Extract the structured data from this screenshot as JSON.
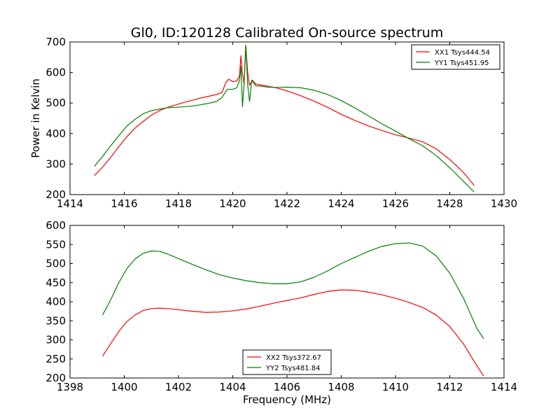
{
  "figure": {
    "title": "Gl0, ID:120128 Calibrated On-source spectrum"
  },
  "chart_data": [
    {
      "type": "line",
      "title": "Gl0, ID:120128 Calibrated On-source spectrum",
      "xlabel": "",
      "ylabel": "Power in Kelvin",
      "xlim": [
        1414,
        1430
      ],
      "ylim": [
        200,
        700
      ],
      "xticks": [
        "1414",
        "1416",
        "1418",
        "1420",
        "1422",
        "1424",
        "1426",
        "1428",
        "1430"
      ],
      "yticks": [
        "200",
        "300",
        "400",
        "500",
        "600",
        "700"
      ],
      "grid": false,
      "legend_position": "top-right",
      "series": [
        {
          "name": "XX1 Tsys444.54",
          "color": "#ff0000",
          "points": [
            [
              1414.9,
              262
            ],
            [
              1415.2,
              290
            ],
            [
              1415.5,
              322
            ],
            [
              1415.8,
              357
            ],
            [
              1416.1,
              390
            ],
            [
              1416.4,
              418
            ],
            [
              1416.7,
              440
            ],
            [
              1417.0,
              460
            ],
            [
              1417.3,
              475
            ],
            [
              1417.6,
              486
            ],
            [
              1417.9,
              494
            ],
            [
              1418.2,
              502
            ],
            [
              1418.5,
              509
            ],
            [
              1418.8,
              516
            ],
            [
              1419.1,
              522
            ],
            [
              1419.4,
              528
            ],
            [
              1419.6,
              534
            ],
            [
              1419.75,
              568
            ],
            [
              1419.85,
              578
            ],
            [
              1420.0,
              570
            ],
            [
              1420.15,
              572
            ],
            [
              1420.25,
              590
            ],
            [
              1420.3,
              655
            ],
            [
              1420.35,
              600
            ],
            [
              1420.42,
              562
            ],
            [
              1420.48,
              690
            ],
            [
              1420.55,
              600
            ],
            [
              1420.62,
              558
            ],
            [
              1420.72,
              575
            ],
            [
              1420.85,
              562
            ],
            [
              1421.0,
              560
            ],
            [
              1421.3,
              555
            ],
            [
              1421.6,
              550
            ],
            [
              1422.0,
              540
            ],
            [
              1422.5,
              524
            ],
            [
              1423.0,
              506
            ],
            [
              1423.5,
              486
            ],
            [
              1424.0,
              463
            ],
            [
              1424.5,
              443
            ],
            [
              1425.0,
              425
            ],
            [
              1425.5,
              410
            ],
            [
              1426.0,
              396
            ],
            [
              1426.5,
              385
            ],
            [
              1427.0,
              373
            ],
            [
              1427.5,
              350
            ],
            [
              1428.0,
              315
            ],
            [
              1428.5,
              273
            ],
            [
              1428.9,
              230
            ]
          ]
        },
        {
          "name": "YY1 Tsys451.95",
          "color": "#008000",
          "points": [
            [
              1414.9,
              293
            ],
            [
              1415.2,
              325
            ],
            [
              1415.5,
              360
            ],
            [
              1415.8,
              393
            ],
            [
              1416.1,
              425
            ],
            [
              1416.4,
              447
            ],
            [
              1416.7,
              465
            ],
            [
              1417.0,
              475
            ],
            [
              1417.3,
              480
            ],
            [
              1417.6,
              485
            ],
            [
              1417.9,
              486
            ],
            [
              1418.2,
              488
            ],
            [
              1418.5,
              490
            ],
            [
              1418.8,
              494
            ],
            [
              1419.1,
              499
            ],
            [
              1419.4,
              505
            ],
            [
              1419.6,
              518
            ],
            [
              1419.8,
              545
            ],
            [
              1420.0,
              545
            ],
            [
              1420.15,
              550
            ],
            [
              1420.25,
              575
            ],
            [
              1420.3,
              620
            ],
            [
              1420.36,
              488
            ],
            [
              1420.42,
              565
            ],
            [
              1420.48,
              688
            ],
            [
              1420.55,
              560
            ],
            [
              1420.62,
              505
            ],
            [
              1420.7,
              575
            ],
            [
              1420.85,
              556
            ],
            [
              1421.0,
              556
            ],
            [
              1421.3,
              552
            ],
            [
              1421.6,
              551
            ],
            [
              1422.0,
              552
            ],
            [
              1422.5,
              550
            ],
            [
              1423.0,
              542
            ],
            [
              1423.5,
              528
            ],
            [
              1424.0,
              508
            ],
            [
              1424.5,
              484
            ],
            [
              1425.0,
              458
            ],
            [
              1425.5,
              432
            ],
            [
              1426.0,
              408
            ],
            [
              1426.5,
              383
            ],
            [
              1427.0,
              360
            ],
            [
              1427.5,
              328
            ],
            [
              1428.0,
              288
            ],
            [
              1428.5,
              244
            ],
            [
              1428.9,
              208
            ]
          ]
        }
      ]
    },
    {
      "type": "line",
      "title": "",
      "xlabel": "Frequency (MHz)",
      "ylabel": "",
      "xlim": [
        1398,
        1414
      ],
      "ylim": [
        200,
        600
      ],
      "xticks": [
        "1398",
        "1400",
        "1402",
        "1404",
        "1406",
        "1408",
        "1410",
        "1412",
        "1414"
      ],
      "yticks": [
        "200",
        "250",
        "300",
        "350",
        "400",
        "450",
        "500",
        "550",
        "600"
      ],
      "grid": false,
      "legend_position": "bottom-center",
      "series": [
        {
          "name": "XX2 Tsys372.67",
          "color": "#ff0000",
          "points": [
            [
              1399.2,
              257
            ],
            [
              1399.5,
              290
            ],
            [
              1399.8,
              322
            ],
            [
              1400.1,
              348
            ],
            [
              1400.4,
              365
            ],
            [
              1400.7,
              377
            ],
            [
              1401.0,
              382
            ],
            [
              1401.3,
              383
            ],
            [
              1401.6,
              382
            ],
            [
              1402.0,
              379
            ],
            [
              1402.5,
              375
            ],
            [
              1403.0,
              372
            ],
            [
              1403.5,
              373
            ],
            [
              1404.0,
              376
            ],
            [
              1404.5,
              381
            ],
            [
              1405.0,
              388
            ],
            [
              1405.5,
              396
            ],
            [
              1406.0,
              403
            ],
            [
              1406.5,
              410
            ],
            [
              1407.0,
              419
            ],
            [
              1407.5,
              427
            ],
            [
              1408.0,
              431
            ],
            [
              1408.5,
              430
            ],
            [
              1409.0,
              425
            ],
            [
              1409.5,
              418
            ],
            [
              1410.0,
              409
            ],
            [
              1410.5,
              398
            ],
            [
              1411.0,
              385
            ],
            [
              1411.5,
              365
            ],
            [
              1412.0,
              335
            ],
            [
              1412.5,
              290
            ],
            [
              1413.0,
              232
            ],
            [
              1413.25,
              205
            ]
          ]
        },
        {
          "name": "YY2 Tsys481.84",
          "color": "#008000",
          "points": [
            [
              1399.2,
              365
            ],
            [
              1399.5,
              405
            ],
            [
              1399.8,
              450
            ],
            [
              1400.1,
              487
            ],
            [
              1400.4,
              512
            ],
            [
              1400.7,
              527
            ],
            [
              1401.0,
              533
            ],
            [
              1401.3,
              532
            ],
            [
              1401.6,
              525
            ],
            [
              1402.0,
              513
            ],
            [
              1402.5,
              498
            ],
            [
              1403.0,
              484
            ],
            [
              1403.5,
              471
            ],
            [
              1404.0,
              462
            ],
            [
              1404.5,
              455
            ],
            [
              1405.0,
              450
            ],
            [
              1405.5,
              447
            ],
            [
              1406.0,
              447
            ],
            [
              1406.5,
              452
            ],
            [
              1407.0,
              464
            ],
            [
              1407.5,
              481
            ],
            [
              1408.0,
              500
            ],
            [
              1408.5,
              516
            ],
            [
              1409.0,
              532
            ],
            [
              1409.5,
              545
            ],
            [
              1410.0,
              552
            ],
            [
              1410.5,
              554
            ],
            [
              1411.0,
              546
            ],
            [
              1411.5,
              520
            ],
            [
              1412.0,
              475
            ],
            [
              1412.5,
              410
            ],
            [
              1413.0,
              330
            ],
            [
              1413.25,
              303
            ]
          ]
        }
      ]
    }
  ]
}
